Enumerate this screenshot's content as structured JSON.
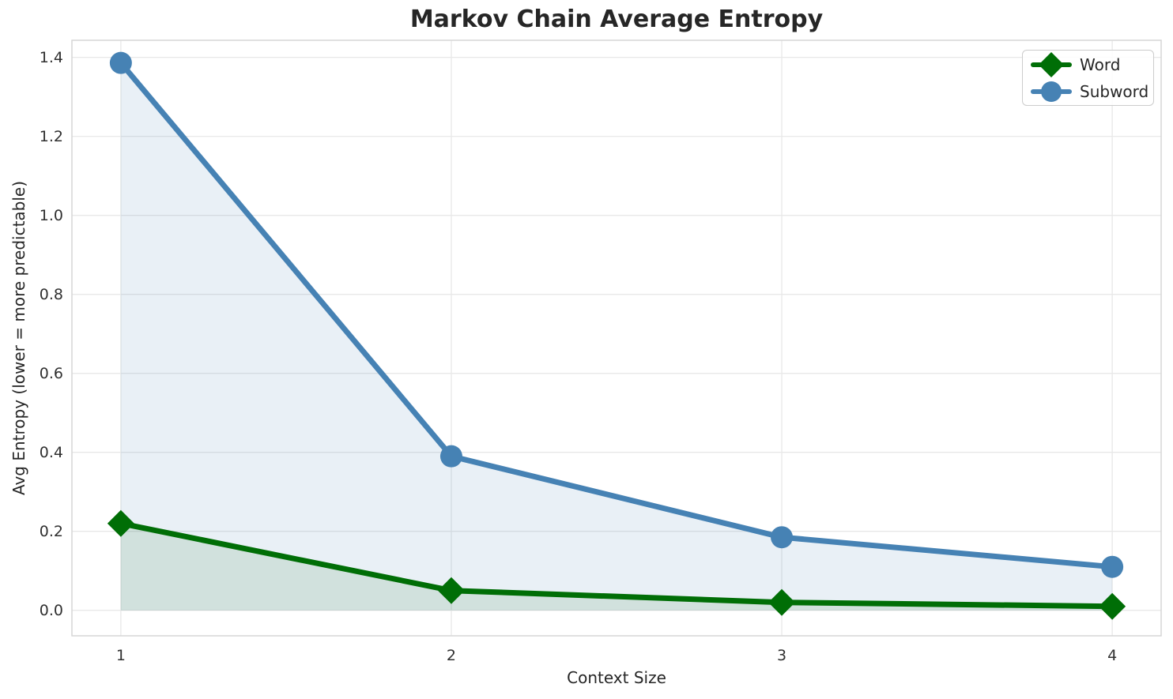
{
  "chart_data": {
    "type": "line",
    "title": "Markov Chain Average Entropy",
    "xlabel": "Context Size",
    "ylabel": "Avg Entropy (lower = more predictable)",
    "x": [
      1,
      2,
      3,
      4
    ],
    "series": [
      {
        "name": "Word",
        "marker": "diamond",
        "color": "#006E06",
        "fill_color": "#006400",
        "fill_opacity": 0.1,
        "values": [
          0.22,
          0.05,
          0.02,
          0.01
        ]
      },
      {
        "name": "Subword",
        "marker": "circle",
        "color": "#4682B4",
        "fill_color": "#4682B4",
        "fill_opacity": 0.12,
        "values": [
          1.386,
          0.39,
          0.185,
          0.11
        ]
      }
    ],
    "xtick_labels": [
      "1",
      "2",
      "3",
      "4"
    ],
    "xtick_values": [
      1,
      2,
      3,
      4
    ],
    "ytick_labels": [
      "0.0",
      "0.2",
      "0.4",
      "0.6",
      "0.8",
      "1.0",
      "1.2",
      "1.4"
    ],
    "ytick_values": [
      0.0,
      0.2,
      0.4,
      0.6,
      0.8,
      1.0,
      1.2,
      1.4
    ],
    "xlim": [
      0.852,
      4.148
    ],
    "ylim": [
      -0.0646,
      1.4433
    ],
    "grid": true,
    "area_fill_baseline": 0,
    "legend_position": "upper right",
    "colors": {
      "grid": "#E8E8E8",
      "spine": "#D6D6D6",
      "text": "#262626",
      "background": "#FFFFFF"
    }
  }
}
